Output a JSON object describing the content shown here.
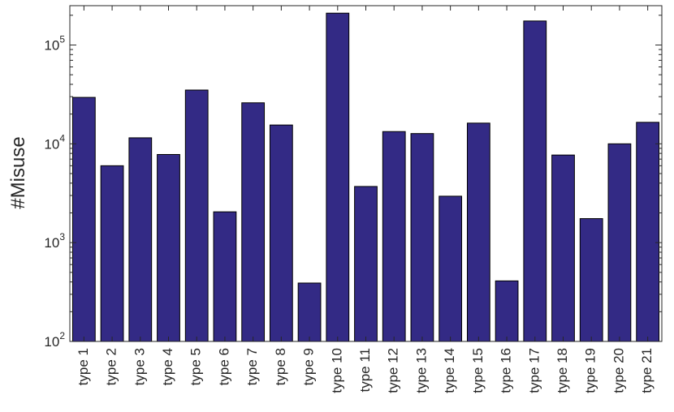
{
  "chart_data": {
    "type": "bar",
    "yscale": "log",
    "ylabel": "#Misuse",
    "xlabel": "",
    "title": "",
    "ylim": [
      100,
      250000
    ],
    "yticks": [
      {
        "value": 100,
        "base": "10",
        "exp": "2"
      },
      {
        "value": 1000,
        "base": "10",
        "exp": "3"
      },
      {
        "value": 10000,
        "base": "10",
        "exp": "4"
      },
      {
        "value": 100000,
        "base": "10",
        "exp": "5"
      }
    ],
    "categories": [
      "type 1",
      "type 2",
      "type 3",
      "type 4",
      "type 5",
      "type 6",
      "type 7",
      "type 8",
      "type 9",
      "type 10",
      "type 11",
      "type 12",
      "type 13",
      "type 14",
      "type 15",
      "type 16",
      "type 17",
      "type 18",
      "type 19",
      "type 20",
      "type 21"
    ],
    "values": [
      29500,
      6000,
      11500,
      7800,
      35000,
      2050,
      26000,
      15500,
      390,
      210000,
      3700,
      13300,
      12700,
      2950,
      16200,
      410,
      175000,
      7700,
      1750,
      10000,
      16500
    ],
    "bar_color": "#332a85",
    "bar_edge": "#000000",
    "grid": false
  }
}
